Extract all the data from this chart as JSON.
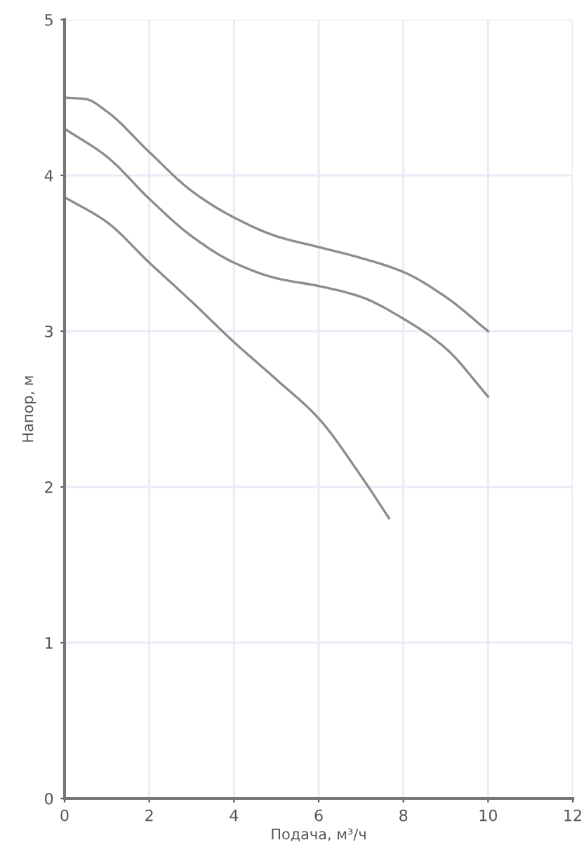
{
  "chart_data": {
    "type": "line",
    "xlabel": "Подача, м³/ч",
    "ylabel": "Напор, м",
    "xlim": [
      0,
      12
    ],
    "xticks": [
      0,
      2,
      4,
      6,
      8,
      10,
      12
    ],
    "ylim": [
      0,
      5
    ],
    "yticks": [
      0,
      1,
      2,
      3,
      4,
      5
    ],
    "grid": true,
    "marker": "none",
    "line_style": "solid",
    "series": [
      {
        "color": "#8c8c8c",
        "x": [
          0,
          0.5,
          1,
          2,
          3,
          4,
          5,
          6,
          7,
          8,
          9,
          10
        ],
        "values": [
          4.5,
          4.49,
          4.41,
          4.15,
          3.9,
          3.73,
          3.61,
          3.54,
          3.47,
          3.38,
          3.22,
          3.0
        ]
      },
      {
        "color": "#8c8c8c",
        "x": [
          0,
          1,
          2,
          3,
          4,
          5,
          6,
          7,
          8,
          9,
          10
        ],
        "values": [
          4.3,
          4.12,
          3.85,
          3.61,
          3.44,
          3.34,
          3.29,
          3.22,
          3.08,
          2.89,
          2.58
        ]
      },
      {
        "color": "#8c8c8c",
        "x": [
          0,
          1,
          2,
          3,
          4,
          5,
          6,
          7,
          7.66
        ],
        "values": [
          3.86,
          3.7,
          3.44,
          3.19,
          2.93,
          2.69,
          2.44,
          2.07,
          1.8
        ]
      }
    ]
  }
}
